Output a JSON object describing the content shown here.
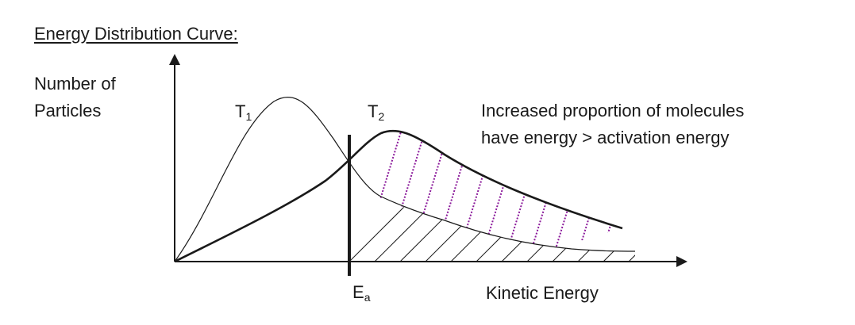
{
  "diagram": {
    "title": "Energy Distribution Curve:",
    "y_axis_label": [
      "Number of",
      "Particles"
    ],
    "x_axis_label": "Kinetic Energy",
    "curves": [
      {
        "label": "T",
        "subscript": "1"
      },
      {
        "label": "T",
        "subscript": "2"
      }
    ],
    "threshold_label": {
      "label": "E",
      "subscript": "a"
    },
    "annotation": [
      "Increased proportion of molecules",
      "have energy > activation energy"
    ],
    "colors": {
      "ink": "#1a1a1a",
      "hatch_t1": "#1a1a1a",
      "hatch_t2": "#8b1a9b"
    }
  }
}
